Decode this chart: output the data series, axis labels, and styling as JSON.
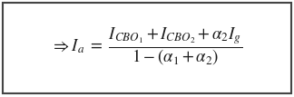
{
  "formula": "$\\Rightarrow I_a \\ = \\ \\dfrac{I_{CBO_1}+I_{CBO_2}+\\alpha_2 I_g}{1-(\\alpha_1+\\alpha_2)}$",
  "bg_color": "#ffffff",
  "border_color": "#444444",
  "text_color": "#1a1a1a",
  "fontsize": 13.5,
  "fig_width": 3.24,
  "fig_height": 1.07,
  "dpi": 100
}
